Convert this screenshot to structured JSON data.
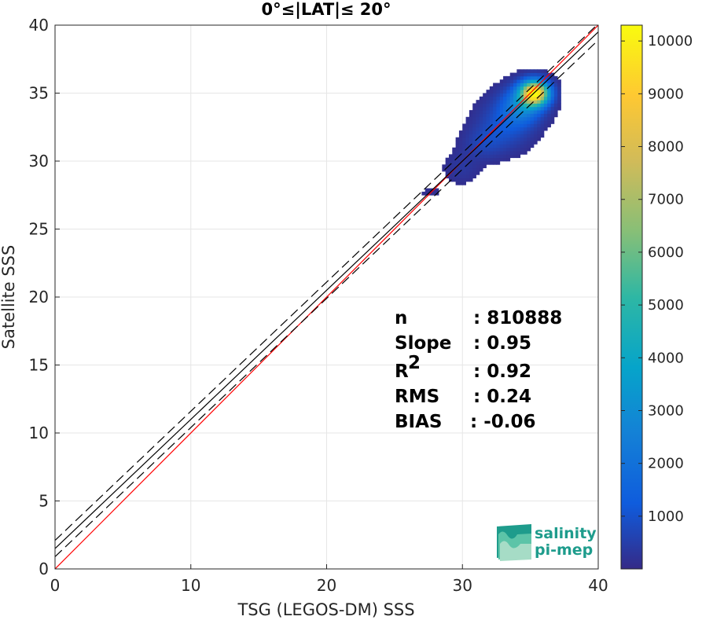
{
  "chart_data": {
    "type": "heatmap",
    "title": "0°≤|LAT|≤ 20°",
    "xlabel": "TSG (LEGOS-DM) SSS",
    "ylabel": "Satellite SSS",
    "xlim": [
      0,
      40
    ],
    "ylim": [
      0,
      40
    ],
    "x_ticks": [
      "0",
      "10",
      "20",
      "30",
      "40"
    ],
    "y_ticks": [
      "0",
      "5",
      "10",
      "15",
      "20",
      "25",
      "30",
      "35",
      "40"
    ],
    "grid": true,
    "colorbar": {
      "range": [
        1,
        10300
      ],
      "ticks": [
        "1000",
        "2000",
        "3000",
        "4000",
        "5000",
        "6000",
        "7000",
        "8000",
        "9000",
        "10000"
      ],
      "colormap": "parula"
    },
    "reference_lines": [
      {
        "name": "identity",
        "slope": 1,
        "intercept": 0,
        "color": "#ff0000",
        "style": "solid"
      },
      {
        "name": "regression",
        "slope": 0.95,
        "intercept": 1.5,
        "color": "#000000",
        "style": "solid"
      },
      {
        "name": "regression +spread",
        "slope": 0.95,
        "intercept": 2.1,
        "color": "#000000",
        "style": "dashed"
      },
      {
        "name": "regression -spread",
        "slope": 0.95,
        "intercept": 0.9,
        "color": "#000000",
        "style": "dashed"
      }
    ],
    "density_clusters": [
      {
        "x": 35.2,
        "y": 34.9,
        "sx": 0.7,
        "sy": 0.6,
        "weight": 10200
      },
      {
        "x": 34.3,
        "y": 34.0,
        "sx": 1.0,
        "sy": 0.9,
        "weight": 2600
      },
      {
        "x": 33.0,
        "y": 32.6,
        "sx": 1.3,
        "sy": 1.2,
        "weight": 1100
      },
      {
        "x": 31.4,
        "y": 31.2,
        "sx": 1.0,
        "sy": 0.8,
        "weight": 600
      },
      {
        "x": 29.8,
        "y": 29.4,
        "sx": 0.9,
        "sy": 0.8,
        "weight": 350
      },
      {
        "x": 27.5,
        "y": 27.6,
        "sx": 0.8,
        "sy": 0.5,
        "weight": 150
      }
    ],
    "stats": [
      {
        "label": "n",
        "value": ": 810888"
      },
      {
        "label": "Slope",
        "value": ": 0.95"
      },
      {
        "label": "R",
        "sup": "2",
        "value": ": 0.92"
      },
      {
        "label": "RMS",
        "value": ": 0.24"
      },
      {
        "label": "BIAS",
        "value": ": -0.06"
      }
    ]
  },
  "logo": {
    "line1": "salinity",
    "line2": "pi-mep",
    "colors": [
      "#1e9c8c",
      "#5cc4a8",
      "#a6dcc6"
    ]
  }
}
